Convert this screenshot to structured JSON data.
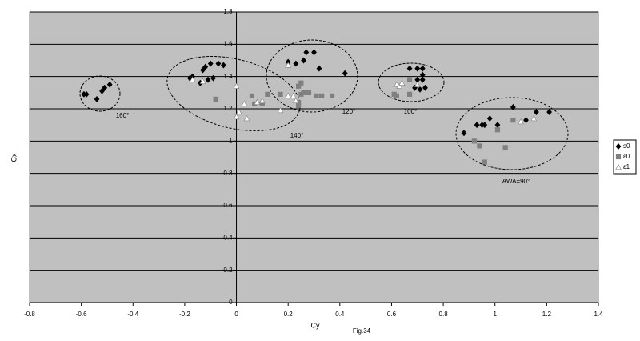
{
  "chart_data": {
    "type": "scatter",
    "x_label": "Cy",
    "y_label": "Cx",
    "caption": "Fig.34",
    "xlim": [
      -0.8,
      1.4
    ],
    "xticks": [
      -0.8,
      -0.6,
      -0.4,
      -0.2,
      0,
      0.2,
      0.4,
      0.6,
      0.8,
      1,
      1.2,
      1.4
    ],
    "ylim": [
      0,
      1.8
    ],
    "yticks": [
      0,
      0.2,
      0.4,
      0.6,
      0.8,
      1,
      1.2,
      1.4,
      1.6,
      1.8
    ],
    "grid": true,
    "legend": "right",
    "annotations": [
      "160°",
      "140°",
      "120°",
      "100°",
      "AWA=90°"
    ],
    "series": [
      {
        "name": "s0",
        "color": "#000000",
        "marker": "diamond",
        "x": [
          -0.59,
          -0.58,
          -0.54,
          -0.52,
          -0.51,
          -0.49,
          -0.18,
          -0.17,
          -0.14,
          -0.13,
          -0.12,
          -0.11,
          -0.1,
          -0.09,
          -0.07,
          -0.05,
          0.2,
          0.23,
          0.26,
          0.27,
          0.3,
          0.32,
          0.42,
          0.67,
          0.7,
          0.72,
          0.7,
          0.72,
          0.69,
          0.73,
          0.72,
          0.71,
          0.88,
          0.93,
          0.95,
          0.96,
          0.98,
          1.01,
          1.07,
          1.12,
          1.16,
          1.21
        ],
        "values": [
          1.29,
          1.29,
          1.26,
          1.31,
          1.33,
          1.35,
          1.39,
          1.4,
          1.36,
          1.44,
          1.46,
          1.38,
          1.48,
          1.39,
          1.48,
          1.47,
          1.49,
          1.48,
          1.5,
          1.55,
          1.55,
          1.45,
          1.42,
          1.45,
          1.45,
          1.45,
          1.38,
          1.41,
          1.33,
          1.33,
          1.38,
          1.32,
          1.05,
          1.1,
          1.1,
          1.1,
          1.14,
          1.1,
          1.21,
          1.13,
          1.18,
          1.18
        ]
      },
      {
        "name": "ε0",
        "color": "#808080",
        "marker": "square",
        "x": [
          -0.08,
          0.06,
          0.07,
          0.1,
          0.12,
          0.17,
          0.24,
          0.25,
          0.24,
          0.25,
          0.26,
          0.28,
          0.31,
          0.33,
          0.37,
          0.24,
          0.61,
          0.62,
          0.67,
          0.67,
          0.92,
          0.94,
          0.96,
          1.04,
          1.01,
          1.07
        ],
        "values": [
          1.26,
          1.28,
          1.23,
          1.23,
          1.29,
          1.29,
          1.34,
          1.36,
          1.24,
          1.29,
          1.3,
          1.3,
          1.28,
          1.28,
          1.28,
          1.22,
          1.29,
          1.28,
          1.38,
          1.29,
          1.0,
          0.97,
          0.87,
          0.96,
          1.07,
          1.13
        ]
      },
      {
        "name": "ε1",
        "color": "#ffffff",
        "marker": "triangle",
        "x": [
          -0.17,
          -0.13,
          0,
          0,
          0.01,
          0.03,
          0.04,
          0.08,
          0.1,
          0.17,
          0.2,
          0.2,
          0.22,
          0.23,
          0.62,
          0.63,
          0.64,
          0.7,
          1.1,
          1.15
        ],
        "values": [
          1.38,
          1.37,
          1.34,
          1.15,
          1.18,
          1.23,
          1.14,
          1.24,
          1.25,
          1.19,
          1.28,
          1.47,
          1.28,
          1.25,
          1.35,
          1.34,
          1.36,
          1.35,
          1.12,
          1.14
        ]
      }
    ]
  }
}
